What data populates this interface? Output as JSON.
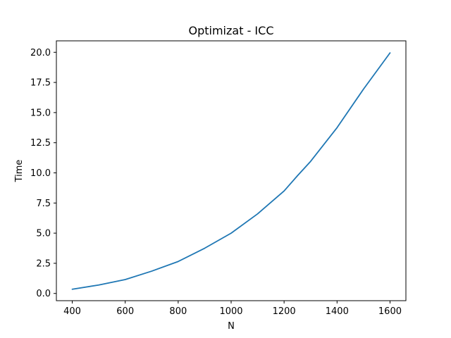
{
  "chart_data": {
    "type": "line",
    "title": "Optimizat - ICC",
    "xlabel": "N",
    "ylabel": "Time",
    "xlim": [
      340,
      1660
    ],
    "ylim": [
      -0.6,
      20.95
    ],
    "grid": false,
    "x_ticks": [
      400,
      600,
      800,
      1000,
      1200,
      1400,
      1600
    ],
    "x_tick_labels": [
      "400",
      "600",
      "800",
      "1000",
      "1200",
      "1400",
      "1600"
    ],
    "y_ticks": [
      0.0,
      2.5,
      5.0,
      7.5,
      10.0,
      12.5,
      15.0,
      17.5,
      20.0
    ],
    "y_tick_labels": [
      "0.0",
      "2.5",
      "5.0",
      "7.5",
      "10.0",
      "12.5",
      "15.0",
      "17.5",
      "20.0"
    ],
    "series": [
      {
        "color": "#1f77b4",
        "x": [
          400,
          500,
          600,
          700,
          800,
          900,
          1000,
          1100,
          1200,
          1250,
          1300,
          1400,
          1500,
          1600
        ],
        "y": [
          0.35,
          0.7,
          1.15,
          1.85,
          2.65,
          3.75,
          5.0,
          6.6,
          8.5,
          9.75,
          10.95,
          13.75,
          16.95,
          19.95
        ]
      }
    ]
  }
}
